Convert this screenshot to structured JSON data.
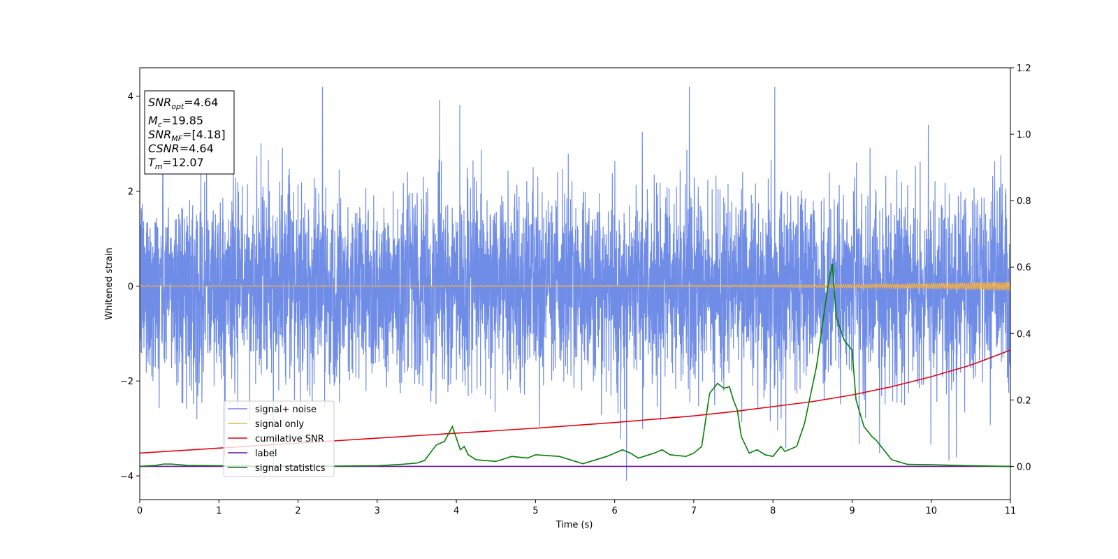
{
  "chart_data": {
    "type": "line",
    "xlabel": "Time (s)",
    "ylabel": "Whitened strain",
    "xlim": [
      0,
      11
    ],
    "ylim_left": [
      -4.5,
      4.6
    ],
    "ylim_right": [
      -0.1,
      1.2
    ],
    "x_ticks": [
      "0",
      "1",
      "2",
      "3",
      "4",
      "5",
      "6",
      "7",
      "8",
      "9",
      "10",
      "11"
    ],
    "y_ticks_left": [
      "−4",
      "−2",
      "0",
      "2",
      "4"
    ],
    "y_ticks_right": [
      "0.0",
      "0.2",
      "0.4",
      "0.6",
      "0.8",
      "1.0",
      "1.2"
    ],
    "legend_position": "lower-left",
    "series": [
      {
        "name": "signal+ noise",
        "color": "#6f8ce6",
        "axis": "left",
        "description_values": {
          "approx_range": [
            -4.1,
            4.2
          ]
        }
      },
      {
        "name": "signal only",
        "color": "#f5b041",
        "axis": "left"
      },
      {
        "name": "cumilative SNR",
        "color": "#e8000b",
        "axis": "right",
        "x": [
          0,
          1,
          2,
          3,
          4,
          5,
          6,
          7,
          7.5,
          8,
          8.5,
          9,
          9.5,
          10,
          10.5,
          11
        ],
        "y": [
          0.04,
          0.055,
          0.07,
          0.085,
          0.1,
          0.115,
          0.132,
          0.152,
          0.165,
          0.18,
          0.195,
          0.215,
          0.24,
          0.27,
          0.305,
          0.35
        ]
      },
      {
        "name": "label",
        "color": "#6a0dad",
        "axis": "right",
        "x": [
          0,
          11
        ],
        "y": [
          0.0,
          0.0
        ]
      },
      {
        "name": "signal statistics",
        "color": "#008000",
        "axis": "right",
        "x": [
          0,
          0.2,
          0.3,
          0.4,
          0.6,
          1.0,
          1.5,
          2.0,
          2.5,
          3.0,
          3.3,
          3.5,
          3.6,
          3.7,
          3.75,
          3.85,
          3.95,
          4.05,
          4.1,
          4.15,
          4.25,
          4.5,
          4.7,
          4.9,
          5.0,
          5.3,
          5.6,
          5.9,
          6.1,
          6.2,
          6.3,
          6.5,
          6.6,
          6.7,
          6.9,
          7.0,
          7.1,
          7.2,
          7.3,
          7.38,
          7.45,
          7.5,
          7.55,
          7.6,
          7.7,
          7.8,
          7.9,
          8.0,
          8.1,
          8.15,
          8.3,
          8.4,
          8.55,
          8.7,
          8.75,
          8.8,
          8.9,
          9.0,
          9.05,
          9.15,
          9.25,
          9.3,
          9.5,
          9.7,
          10.0,
          10.5,
          11.0
        ],
        "y": [
          0.0,
          0.003,
          0.007,
          0.007,
          0.003,
          0.002,
          0.001,
          0.002,
          0.001,
          0.002,
          0.006,
          0.01,
          0.018,
          0.05,
          0.065,
          0.075,
          0.12,
          0.05,
          0.06,
          0.035,
          0.02,
          0.015,
          0.03,
          0.025,
          0.035,
          0.03,
          0.008,
          0.03,
          0.05,
          0.04,
          0.025,
          0.04,
          0.05,
          0.035,
          0.03,
          0.04,
          0.06,
          0.22,
          0.25,
          0.235,
          0.24,
          0.2,
          0.17,
          0.09,
          0.04,
          0.05,
          0.035,
          0.03,
          0.06,
          0.045,
          0.06,
          0.13,
          0.3,
          0.55,
          0.61,
          0.45,
          0.38,
          0.35,
          0.2,
          0.12,
          0.09,
          0.08,
          0.02,
          0.006,
          0.005,
          0.002,
          0.0
        ]
      }
    ],
    "annotation_box": {
      "snr_opt": {
        "base": "SNR",
        "sub": "opt",
        "value": "=4.64"
      },
      "mc": {
        "base": "M",
        "sub": "c",
        "value": "=19.85"
      },
      "snr_mf": {
        "base": "SNR",
        "sub": "MF",
        "value": "=[4.18]"
      },
      "csnr": {
        "base": "CSNR",
        "value": "=4.64"
      },
      "tm": {
        "base": "T",
        "sub": "m",
        "value": "=12.07"
      }
    }
  }
}
